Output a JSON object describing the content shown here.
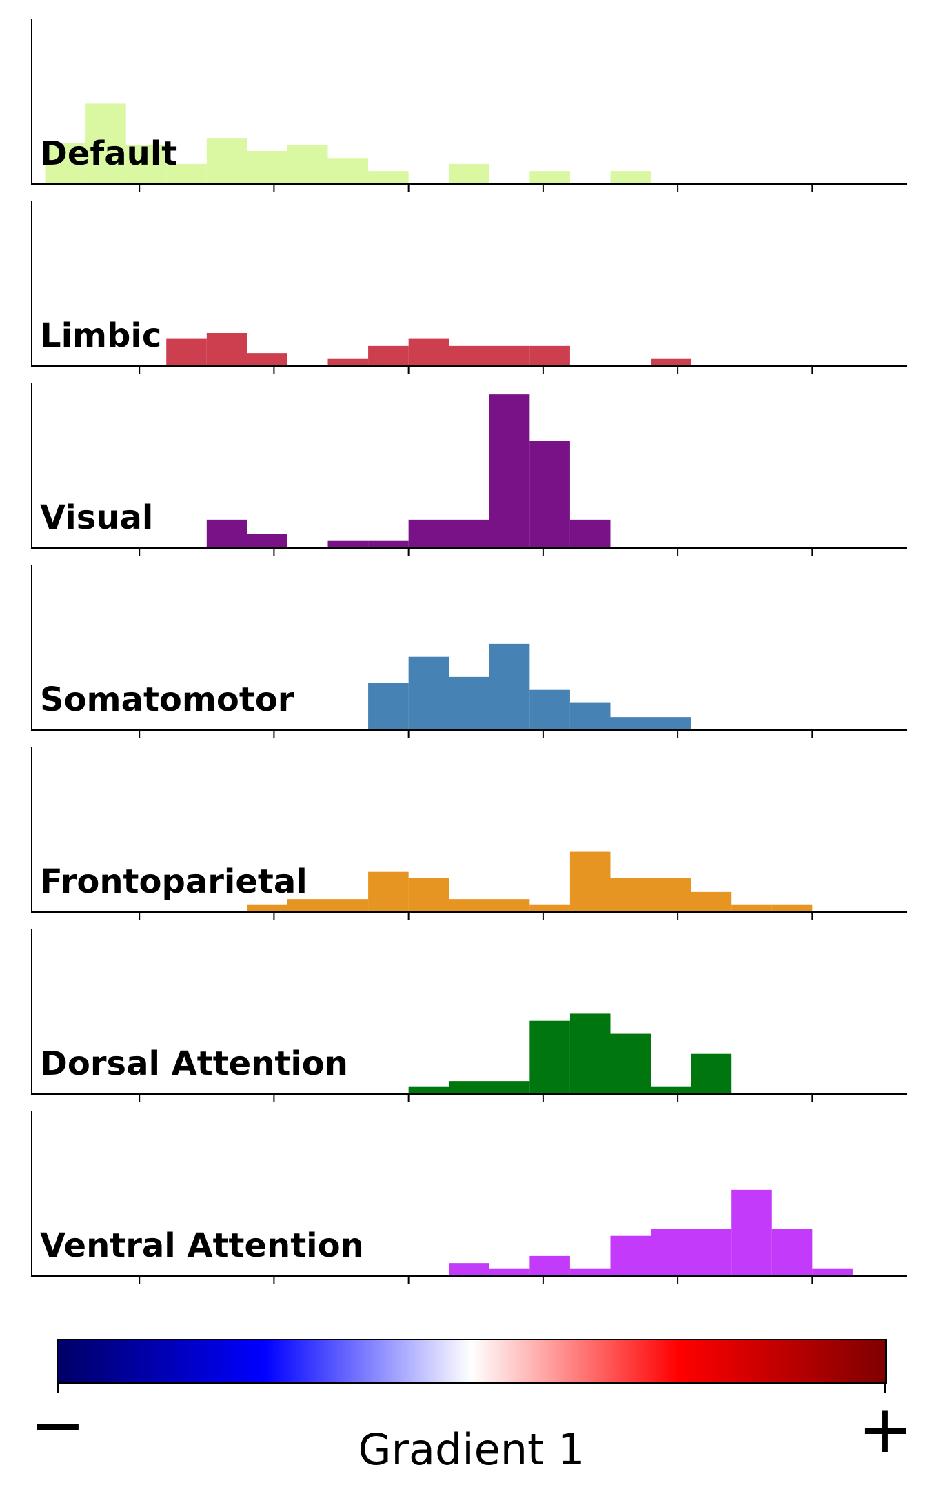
{
  "chart_data": {
    "type": "histogram",
    "xlabel": "Gradient 1",
    "colorbar": {
      "min_label": "−",
      "max_label": "+",
      "stops": [
        "#000066",
        "#0000ff",
        "#ffffff",
        "#ff0000",
        "#7f0000"
      ]
    },
    "bin_edges": [
      -0.58,
      -0.52,
      -0.46,
      -0.4,
      -0.34,
      -0.28,
      -0.22,
      -0.16,
      -0.1,
      -0.04,
      0.02,
      0.08,
      0.14,
      0.2,
      0.26,
      0.32,
      0.38,
      0.44,
      0.5,
      0.56,
      0.62,
      0.68,
      0.74
    ],
    "xlim": [
      -0.6,
      0.7
    ],
    "xticks": [
      -0.44,
      -0.24,
      -0.04,
      0.16,
      0.36,
      0.56
    ],
    "ylim": [
      0,
      14
    ],
    "series": [
      {
        "name": "Default",
        "color": "#daf7a1",
        "counts": [
          3.5,
          6.8,
          3.3,
          1.7,
          3.9,
          2.8,
          3.3,
          2.2,
          1.1,
          0,
          1.7,
          0,
          1.1,
          0,
          1.1,
          0,
          0,
          0,
          0,
          0,
          0,
          0
        ]
      },
      {
        "name": "Limbic",
        "color": "#cd3e4e",
        "counts": [
          0,
          0,
          0,
          2.3,
          2.8,
          1.1,
          0.1,
          0.6,
          1.7,
          2.3,
          1.7,
          1.7,
          1.7,
          0.1,
          0.1,
          0.6,
          0,
          0,
          0,
          0,
          0,
          0
        ]
      },
      {
        "name": "Visual",
        "color": "#781286",
        "counts": [
          0,
          0,
          0,
          0,
          2.4,
          1.2,
          0.1,
          0.6,
          0.6,
          2.4,
          2.4,
          13.0,
          9.1,
          2.4,
          0,
          0,
          0,
          0,
          0,
          0,
          0,
          0
        ]
      },
      {
        "name": "Somatomotor",
        "color": "#4682b4",
        "counts": [
          0,
          0,
          0,
          0,
          0,
          0,
          0,
          0,
          4.0,
          6.2,
          4.5,
          7.3,
          3.4,
          2.3,
          1.1,
          1.1,
          0,
          0,
          0,
          0,
          0,
          0
        ]
      },
      {
        "name": "Frontoparietal",
        "color": "#e69422",
        "counts": [
          0,
          0,
          0,
          0,
          0,
          0.6,
          1.1,
          1.1,
          3.4,
          2.9,
          1.1,
          1.1,
          0.6,
          5.1,
          2.9,
          2.9,
          1.7,
          0.6,
          0.6,
          0,
          0,
          0
        ]
      },
      {
        "name": "Dorsal Attention",
        "color": "#00760e",
        "counts": [
          0,
          0,
          0,
          0,
          0,
          0,
          0,
          0,
          0,
          0.6,
          1.1,
          1.1,
          6.2,
          6.8,
          5.1,
          0.6,
          3.4,
          0,
          0,
          0,
          0,
          0
        ]
      },
      {
        "name": "Ventral Attention",
        "color": "#c43afa",
        "counts": [
          0,
          0,
          0,
          0,
          0,
          0,
          0,
          0,
          0,
          0,
          1.1,
          0.6,
          1.7,
          0.6,
          3.4,
          4.0,
          4.0,
          7.3,
          4.0,
          0.6,
          0,
          0
        ]
      }
    ]
  }
}
